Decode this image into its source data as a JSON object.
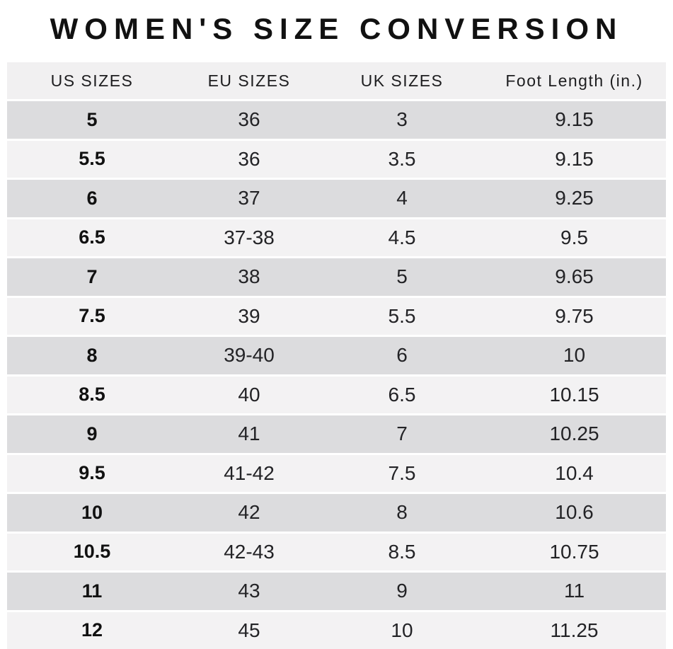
{
  "title": "WOMEN'S SIZE CONVERSION",
  "colors": {
    "page_bg": "#ffffff",
    "header_bg": "#f1f0f1",
    "row_dark": "#dcdcde",
    "row_light": "#f3f2f3",
    "text": "#1d1d1f"
  },
  "table": {
    "headers": {
      "us": "US SIZES",
      "eu": "EU SIZES",
      "uk": "UK SIZES",
      "foot": "Foot Length (in.)"
    },
    "rows": [
      [
        "5",
        "36",
        "3",
        "9.15"
      ],
      [
        "5.5",
        "36",
        "3.5",
        "9.15"
      ],
      [
        "6",
        "37",
        "4",
        "9.25"
      ],
      [
        "6.5",
        "37-38",
        "4.5",
        "9.5"
      ],
      [
        "7",
        "38",
        "5",
        "9.65"
      ],
      [
        "7.5",
        "39",
        "5.5",
        "9.75"
      ],
      [
        "8",
        "39-40",
        "6",
        "10"
      ],
      [
        "8.5",
        "40",
        "6.5",
        "10.15"
      ],
      [
        "9",
        "41",
        "7",
        "10.25"
      ],
      [
        "9.5",
        "41-42",
        "7.5",
        "10.4"
      ],
      [
        "10",
        "42",
        "8",
        "10.6"
      ],
      [
        "10.5",
        "42-43",
        "8.5",
        "10.75"
      ],
      [
        "11",
        "43",
        "9",
        "11"
      ],
      [
        "12",
        "45",
        "10",
        "11.25"
      ]
    ]
  }
}
